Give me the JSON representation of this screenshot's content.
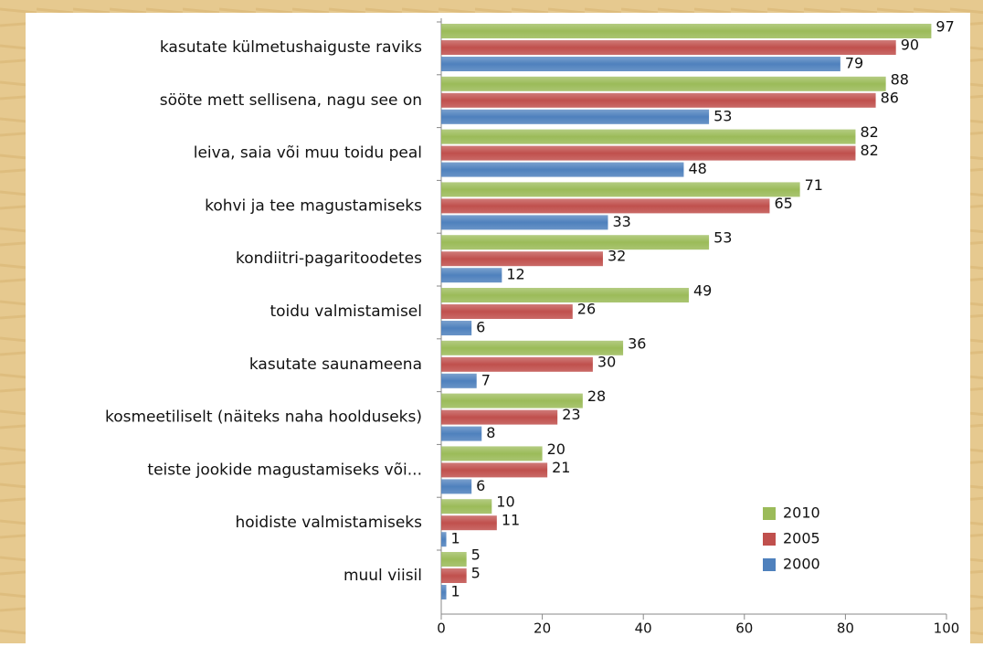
{
  "chart_data": {
    "type": "bar",
    "orientation": "horizontal",
    "categories": [
      "kasutate külmetushaiguste raviks",
      "sööte mett sellisena, nagu see on",
      "leiva, saia või muu toidu peal",
      "kohvi ja tee magustamiseks",
      "kondiitri-pagaritoodetes",
      "toidu valmistamisel",
      "kasutate saunameena",
      "kosmeetiliselt (näiteks naha hoolduseks)",
      "teiste jookide magustamiseks või...",
      "hoidiste valmistamiseks",
      "muul viisil"
    ],
    "series": [
      {
        "name": "2010",
        "color": "#9bbb59",
        "values": [
          97,
          88,
          82,
          71,
          53,
          49,
          36,
          28,
          20,
          10,
          5
        ]
      },
      {
        "name": "2005",
        "color": "#c0504d",
        "values": [
          90,
          86,
          82,
          65,
          32,
          26,
          30,
          23,
          21,
          11,
          5
        ]
      },
      {
        "name": "2000",
        "color": "#4f81bd",
        "values": [
          79,
          53,
          48,
          33,
          12,
          6,
          7,
          8,
          6,
          1,
          1
        ]
      }
    ],
    "xlim": [
      0,
      100
    ],
    "xticks": [
      0,
      20,
      40,
      60,
      80,
      100
    ],
    "legend": "bottom-right"
  }
}
